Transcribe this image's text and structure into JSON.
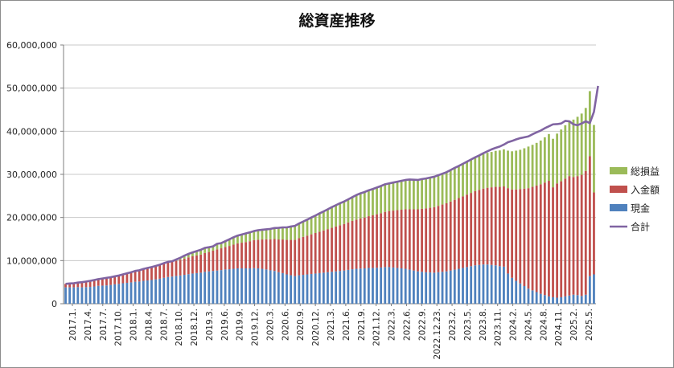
{
  "chart_data": {
    "type": "bar",
    "title": "総資産推移",
    "xlabel": "",
    "ylabel": "",
    "ylim": [
      0,
      60000000
    ],
    "yticks": [
      0,
      10000000,
      20000000,
      30000000,
      40000000,
      50000000,
      60000000
    ],
    "ytick_labels": [
      "0",
      "10,000,000",
      "20,000,000",
      "30,000,000",
      "40,000,000",
      "50,000,000",
      "60,000,000"
    ],
    "grid": true,
    "legend_position": "right",
    "stacked": true,
    "x_tick_labels": [
      "2017.1.",
      "2017.4.",
      "2017.7.",
      "2017.10.",
      "2018.1.",
      "2018.4.",
      "2018.7.",
      "2018.10.",
      "2018.12.",
      "2019.3.",
      "2019.6.",
      "2019.9.",
      "2019.12.",
      "2020.3.",
      "2020.6.",
      "2020.9.",
      "2020.12.",
      "2021.3.",
      "2021.6.",
      "2021.9.",
      "2021.12.",
      "2022.3.",
      "2022.6.",
      "2022.9.",
      "2022.12.23.",
      "2023.2.",
      "2023.5.",
      "2023.8.",
      "2023.11.",
      "2024.2.",
      "2024.5.",
      "2024.8.",
      "2024.11.",
      "2025.2.",
      "2025.5."
    ],
    "series": [
      {
        "name": "総損益",
        "color": "#9bbb59",
        "values": [
          0,
          0,
          0,
          0,
          0,
          0,
          0,
          0,
          0,
          0,
          0,
          0,
          0,
          0,
          0,
          0,
          0,
          0,
          0,
          0,
          0,
          0,
          0,
          0,
          0,
          0,
          100000,
          300000,
          450000,
          700000,
          800000,
          900000,
          1000000,
          1100000,
          1200000,
          1100000,
          1000000,
          1300000,
          1200000,
          1350000,
          1550000,
          1700000,
          1800000,
          1900000,
          2000000,
          2050000,
          2100000,
          2200000,
          2250000,
          2300000,
          2400000,
          2550000,
          2700000,
          2800000,
          2900000,
          3100000,
          3250000,
          3400000,
          3550000,
          3700000,
          3900000,
          4050000,
          4250000,
          4400000,
          4600000,
          4800000,
          4950000,
          5100000,
          5200000,
          5350000,
          5500000,
          5700000,
          5850000,
          5900000,
          6000000,
          6100000,
          6200000,
          6300000,
          6400000,
          6400000,
          6500000,
          6600000,
          6700000,
          6800000,
          6900000,
          6850000,
          6800000,
          6900000,
          6950000,
          7000000,
          7050000,
          7100000,
          7150000,
          7200000,
          7300000,
          7400000,
          7450000,
          7550000,
          7650000,
          7750000,
          7850000,
          7900000,
          8000000,
          8100000,
          8200000,
          8350000,
          8450000,
          8600000,
          8700000,
          8850000,
          9000000,
          9100000,
          9350000,
          9650000,
          9750000,
          9900000,
          10150000,
          10500000,
          10850000,
          11250000,
          11550000,
          12000000,
          12400000,
          12850000,
          13300000,
          13750000,
          14200000,
          14600000,
          15100000,
          15650000
        ]
      },
      {
        "name": "入金額",
        "color": "#c0504d",
        "values": [
          800000,
          900000,
          950000,
          1050000,
          1200000,
          1300000,
          1400000,
          1500000,
          1550000,
          1650000,
          1750000,
          1800000,
          1850000,
          1950000,
          2050000,
          2200000,
          2350000,
          2500000,
          2600000,
          2750000,
          2900000,
          3000000,
          3100000,
          3250000,
          3400000,
          3500000,
          3450000,
          3500000,
          3650000,
          3750000,
          3900000,
          4000000,
          4100000,
          4200000,
          4350000,
          4500000,
          4700000,
          4900000,
          5050000,
          5200000,
          5400000,
          5600000,
          5800000,
          5950000,
          6100000,
          6300000,
          6500000,
          6650000,
          6800000,
          7000000,
          7200000,
          7400000,
          7600000,
          7800000,
          8000000,
          8200000,
          8400000,
          8600000,
          8800000,
          9000000,
          9200000,
          9400000,
          9600000,
          9800000,
          10000000,
          10200000,
          10400000,
          10600000,
          10800000,
          11000000,
          11200000,
          11400000,
          11600000,
          11800000,
          12000000,
          12200000,
          12400000,
          12600000,
          12800000,
          13000000,
          13200000,
          13400000,
          13600000,
          13800000,
          14000000,
          14200000,
          14400000,
          14600000,
          14800000,
          15000000,
          15200000,
          15400000,
          15600000,
          15800000,
          16000000,
          16200000,
          16400000,
          16600000,
          16800000,
          17000000,
          17200000,
          17400000,
          17600000,
          17800000,
          18000000,
          18200000,
          18400000,
          18600000,
          19800000,
          20500000,
          21200000,
          21900000,
          22600000,
          23300000,
          24000000,
          24700000,
          25400000,
          26100000,
          26800000,
          25500000,
          26500000,
          26900000,
          27300000,
          27700000,
          27300000,
          27600000,
          28100000,
          28700000,
          27800000,
          19000000
        ]
      },
      {
        "name": "現金",
        "color": "#4f81bd",
        "values": [
          3800000,
          3800000,
          3800000,
          3850000,
          3800000,
          3850000,
          3900000,
          4000000,
          4150000,
          4200000,
          4250000,
          4350000,
          4500000,
          4600000,
          4750000,
          4850000,
          4950000,
          5100000,
          5150000,
          5300000,
          5400000,
          5500000,
          5650000,
          5800000,
          6000000,
          6200000,
          6300000,
          6450000,
          6550000,
          6700000,
          6850000,
          7000000,
          7100000,
          7200000,
          7400000,
          7500000,
          7600000,
          7700000,
          7800000,
          7950000,
          8000000,
          8100000,
          8200000,
          8200000,
          8200000,
          8200000,
          8250000,
          8200000,
          8100000,
          7950000,
          7750000,
          7600000,
          7300000,
          7100000,
          6800000,
          6600000,
          6400000,
          6600000,
          6700000,
          6800000,
          6900000,
          7000000,
          7100000,
          7200000,
          7300000,
          7400000,
          7500000,
          7600000,
          7700000,
          7850000,
          8000000,
          8100000,
          8150000,
          8200000,
          8300000,
          8300000,
          8350000,
          8400000,
          8500000,
          8500000,
          8400000,
          8300000,
          8200000,
          8100000,
          7900000,
          7700000,
          7500000,
          7400000,
          7300000,
          7250000,
          7200000,
          7300000,
          7400000,
          7500000,
          7700000,
          7900000,
          8100000,
          8300000,
          8500000,
          8700000,
          8900000,
          9000000,
          9100000,
          9100000,
          9000000,
          8900000,
          8700000,
          8600000,
          7000000,
          6000000,
          5300000,
          4700000,
          4100000,
          3500000,
          3100000,
          2700000,
          2300000,
          2000000,
          1700000,
          1500000,
          1400000,
          1500000,
          1700000,
          1900000,
          2100000,
          2000000,
          1800000,
          2100000,
          6400000,
          6800000
        ]
      }
    ],
    "line_series": {
      "name": "合計",
      "color": "#8064a2",
      "values": [
        4600000,
        4700000,
        4750000,
        4900000,
        5000000,
        5150000,
        5300000,
        5500000,
        5700000,
        5850000,
        6000000,
        6150000,
        6350000,
        6550000,
        6800000,
        7050000,
        7300000,
        7600000,
        7750000,
        8050000,
        8300000,
        8500000,
        8750000,
        9050000,
        9400000,
        9700000,
        9850000,
        10250000,
        10650000,
        11150000,
        11550000,
        11900000,
        12200000,
        12500000,
        12950000,
        13100000,
        13300000,
        13900000,
        14050000,
        14500000,
        14950000,
        15400000,
        15800000,
        16050000,
        16300000,
        16550000,
        16850000,
        17050000,
        17150000,
        17250000,
        17350000,
        17550000,
        17600000,
        17700000,
        17700000,
        17900000,
        18050000,
        18600000,
        19050000,
        19500000,
        20000000,
        20450000,
        20950000,
        21400000,
        21900000,
        22400000,
        22850000,
        23300000,
        23700000,
        24200000,
        24700000,
        25200000,
        25600000,
        25900000,
        26300000,
        26600000,
        26950000,
        27300000,
        27700000,
        27900000,
        28100000,
        28300000,
        28500000,
        28700000,
        28800000,
        28750000,
        28700000,
        28900000,
        29050000,
        29250000,
        29450000,
        29800000,
        30150000,
        30500000,
        31000000,
        31500000,
        31950000,
        32450000,
        32950000,
        33450000,
        33950000,
        34400000,
        34900000,
        35350000,
        35800000,
        36150000,
        36450000,
        36900000,
        37450000,
        37750000,
        38100000,
        38400000,
        38600000,
        38800000,
        39300000,
        39750000,
        40150000,
        40700000,
        41150000,
        41600000,
        41650000,
        41800000,
        42400000,
        42300000,
        41600000,
        41400000,
        41800000,
        42300000,
        41900000,
        44500000,
        50500000
      ]
    }
  }
}
